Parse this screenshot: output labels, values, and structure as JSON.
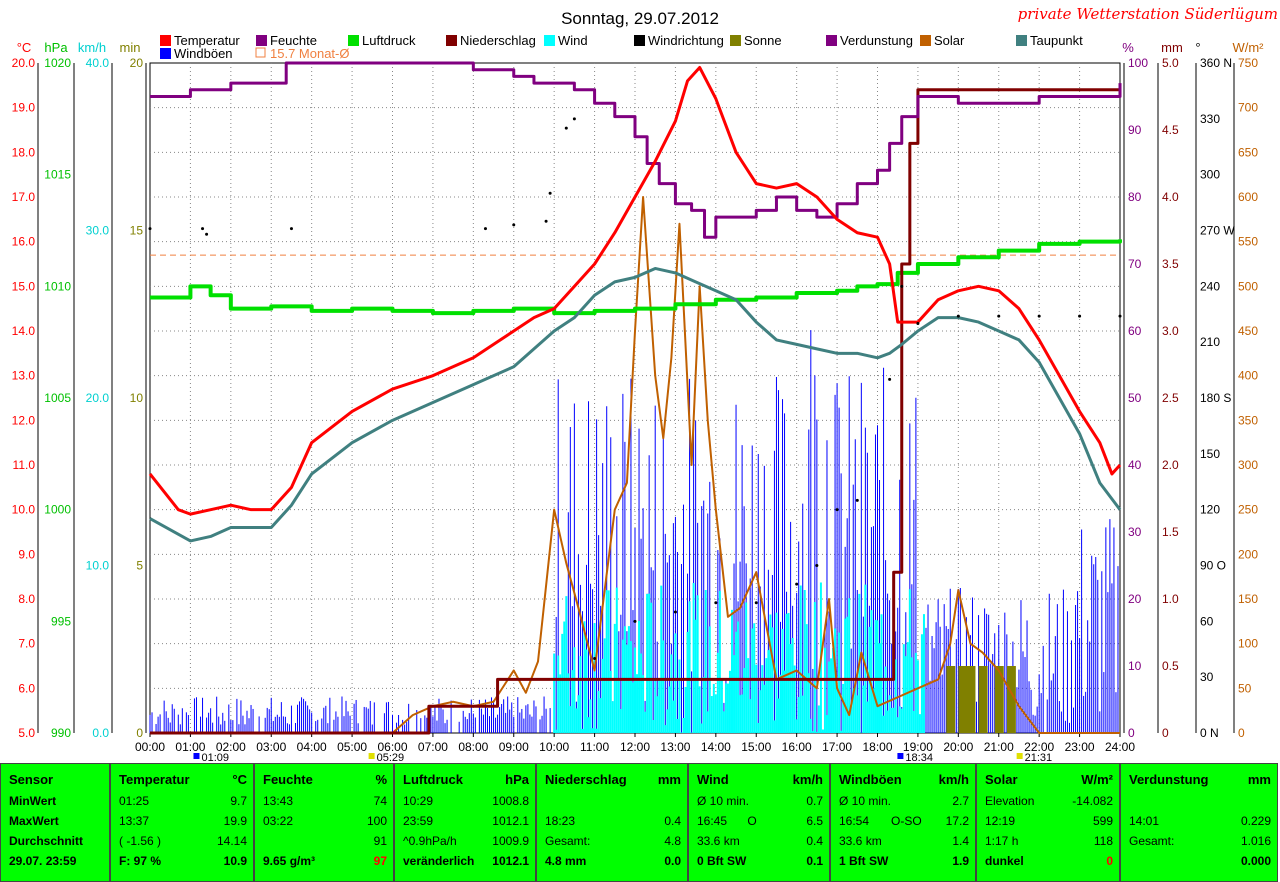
{
  "title": "Sonntag, 29.07.2012",
  "brand": "private Wetterstation Süderlügum",
  "legend": [
    {
      "label": "Temperatur",
      "color": "#ff0000"
    },
    {
      "label": "Feuchte",
      "color": "#800080"
    },
    {
      "label": "Luftdruck",
      "color": "#00e000"
    },
    {
      "label": "Niederschlag",
      "color": "#800000"
    },
    {
      "label": "Wind",
      "color": "#00ffff"
    },
    {
      "label": "Windrichtung",
      "color": "#000000"
    },
    {
      "label": "Sonne",
      "color": "#808000"
    },
    {
      "label": "Verdunstung",
      "color": "#800080"
    },
    {
      "label": "Solar",
      "color": "#c06000"
    },
    {
      "label": "Taupunkt",
      "color": "#408080"
    },
    {
      "label": "Windböen",
      "color": "#0000ff"
    },
    {
      "label": "15.7 Monat-Ø",
      "color": "#f08040"
    }
  ],
  "axes_left": {
    "temp": {
      "unit": "°C",
      "ticks": [
        "20.0",
        "19.0",
        "18.0",
        "17.0",
        "16.0",
        "15.0",
        "14.0",
        "13.0",
        "12.0",
        "11.0",
        "10.0",
        "9.0",
        "8.0",
        "7.0",
        "6.0",
        "5.0"
      ],
      "color": "#ff0000"
    },
    "pressure": {
      "unit": "hPa",
      "ticks": [
        "1020",
        "1015",
        "1010",
        "1005",
        "1000",
        "995",
        "990"
      ],
      "color": "#00c000"
    },
    "wind": {
      "unit": "km/h",
      "ticks": [
        "40.0",
        "30.0",
        "20.0",
        "10.0",
        "0.0"
      ],
      "color": "#00d0d0"
    },
    "sun": {
      "unit": "min",
      "ticks": [
        "20",
        "15",
        "10",
        "5",
        "0"
      ],
      "color": "#808000"
    }
  },
  "axes_right": {
    "humidity": {
      "unit": "%",
      "ticks": [
        "100",
        "90",
        "80",
        "70",
        "60",
        "50",
        "40",
        "30",
        "20",
        "10",
        "0"
      ],
      "color": "#800080"
    },
    "rain": {
      "unit": "mm",
      "ticks": [
        "5.0",
        "4.5",
        "4.0",
        "3.5",
        "3.0",
        "2.5",
        "2.0",
        "1.5",
        "1.0",
        "0.5",
        "0"
      ],
      "color": "#800000"
    },
    "direction": {
      "unit": "°",
      "ticks": [
        "360 N",
        "330",
        "300",
        "270 W",
        "240",
        "210",
        "180 S",
        "150",
        "120",
        "90 O",
        "60",
        "30",
        "0 N"
      ],
      "color": "#000000"
    },
    "solar": {
      "unit": "W/m²",
      "ticks": [
        "750",
        "700",
        "650",
        "600",
        "550",
        "500",
        "450",
        "400",
        "350",
        "300",
        "250",
        "200",
        "150",
        "100",
        "50",
        "0"
      ],
      "color": "#c06000"
    }
  },
  "x_ticks": [
    "00:00",
    "01:00",
    "02:00",
    "03:00",
    "04:00",
    "05:00",
    "06:00",
    "07:00",
    "08:00",
    "09:00",
    "10:00",
    "11:00",
    "12:00",
    "13:00",
    "14:00",
    "15:00",
    "16:00",
    "17:00",
    "18:00",
    "19:00",
    "20:00",
    "21:00",
    "22:00",
    "23:00",
    "24:00"
  ],
  "markers": [
    {
      "label": "01:09",
      "color": "#0000ff"
    },
    {
      "label": "05:29",
      "color": "#e0e000"
    },
    {
      "label": "18:34",
      "color": "#0000ff"
    },
    {
      "label": "21:31",
      "color": "#e0e000"
    }
  ],
  "chart_data": {
    "type": "line",
    "title": "Sonntag, 29.07.2012",
    "x_range": [
      0,
      24
    ],
    "monthly_avg_temp": 15.7,
    "series": [
      {
        "name": "Temperatur",
        "unit": "°C",
        "x": [
          0,
          0.7,
          1,
          1.5,
          2,
          2.5,
          3,
          3.5,
          4,
          5,
          6,
          7,
          8,
          8.5,
          9,
          9.5,
          10,
          10.5,
          11,
          11.5,
          12,
          12.5,
          13,
          13.3,
          13.6,
          14,
          14.5,
          15,
          15.5,
          16,
          16.5,
          17,
          17.5,
          18,
          18.3,
          18.5,
          19,
          19.5,
          20,
          20.5,
          21,
          21.5,
          22,
          22.5,
          23,
          23.5,
          23.8,
          24
        ],
        "y": [
          10.8,
          10.0,
          9.9,
          10.0,
          10.1,
          10.0,
          10.0,
          10.5,
          11.5,
          12.2,
          12.7,
          13.0,
          13.4,
          13.7,
          14.0,
          14.3,
          14.5,
          15.0,
          15.5,
          16.2,
          17.0,
          17.8,
          18.7,
          19.6,
          19.9,
          19.2,
          18.0,
          17.3,
          17.2,
          17.3,
          17.0,
          16.5,
          16.2,
          16.1,
          15.5,
          14.2,
          14.2,
          14.7,
          14.9,
          15.0,
          14.9,
          14.5,
          13.8,
          13.0,
          12.2,
          11.5,
          10.8,
          11.0
        ]
      },
      {
        "name": "Feuchte",
        "unit": "%",
        "x": [
          0,
          1,
          2,
          3,
          3.37,
          4,
          6,
          8,
          9,
          9.5,
          10,
          10.5,
          11,
          11.5,
          12,
          12.3,
          12.6,
          13,
          13.4,
          13.72,
          14,
          14.5,
          15,
          15.5,
          16,
          16.5,
          17,
          17.5,
          18,
          18.3,
          18.6,
          19,
          19.5,
          20,
          21,
          22,
          23,
          24
        ],
        "y": [
          95,
          96,
          97,
          97,
          100,
          100,
          100,
          99,
          98,
          97,
          97,
          96,
          94,
          92,
          89,
          85,
          82,
          79,
          78,
          74,
          77,
          77,
          78,
          80,
          78,
          77,
          79,
          82,
          84,
          88,
          92,
          95,
          95,
          94,
          94,
          95,
          95,
          97
        ]
      },
      {
        "name": "Luftdruck",
        "unit": "hPa",
        "x": [
          0,
          1,
          1.5,
          2,
          3,
          4,
          5,
          6,
          7,
          8,
          9,
          10,
          10.49,
          11,
          12,
          13,
          14,
          15,
          16,
          17,
          17.5,
          18,
          18.5,
          19,
          20,
          21,
          22,
          23,
          24
        ],
        "y": [
          1009.5,
          1010,
          1009.6,
          1009.0,
          1009.1,
          1008.9,
          1009.0,
          1008.9,
          1008.8,
          1008.9,
          1009.0,
          1008.8,
          1008.8,
          1008.9,
          1009.0,
          1009.2,
          1009.4,
          1009.5,
          1009.7,
          1009.8,
          1010.0,
          1010.1,
          1010.6,
          1011.0,
          1011.3,
          1011.6,
          1011.9,
          1012.0,
          1012.1
        ]
      },
      {
        "name": "Niederschlag",
        "unit": "mm",
        "x": [
          0,
          6.8,
          6.9,
          8.5,
          8.6,
          18.3,
          18.4,
          18.6,
          18.8,
          19,
          24
        ],
        "y": [
          0,
          0,
          0.2,
          0.2,
          0.4,
          0.4,
          1.2,
          3.5,
          4.4,
          4.8,
          4.8
        ]
      },
      {
        "name": "Taupunkt",
        "unit": "°C",
        "x": [
          0,
          1,
          1.5,
          2,
          3,
          3.5,
          4,
          5,
          6,
          7,
          8,
          9,
          9.5,
          10,
          10.5,
          11,
          11.5,
          12,
          12.5,
          13,
          13.5,
          14,
          14.5,
          15,
          15.5,
          16,
          16.5,
          17,
          17.5,
          18,
          18.3,
          18.6,
          19,
          19.5,
          20,
          20.5,
          21,
          21.5,
          22,
          22.5,
          23,
          23.5,
          24
        ],
        "y": [
          9.8,
          9.3,
          9.4,
          9.6,
          9.6,
          10.1,
          10.8,
          11.5,
          12.0,
          12.4,
          12.8,
          13.2,
          13.6,
          14.0,
          14.3,
          14.8,
          15.1,
          15.2,
          15.4,
          15.3,
          15.1,
          14.9,
          14.7,
          14.2,
          13.8,
          13.7,
          13.6,
          13.5,
          13.5,
          13.4,
          13.5,
          13.7,
          14.0,
          14.3,
          14.3,
          14.2,
          14.0,
          13.8,
          13.3,
          12.5,
          11.7,
          10.6,
          10.0
        ]
      },
      {
        "name": "Solar",
        "unit": "W/m²",
        "x": [
          0,
          6,
          6.5,
          7,
          7.5,
          8,
          8.5,
          9,
          9.3,
          9.6,
          10,
          10.3,
          10.6,
          11,
          11.5,
          11.8,
          12,
          12.2,
          12.5,
          12.7,
          12.9,
          13.1,
          13.4,
          13.6,
          13.8,
          14,
          14.3,
          14.6,
          15,
          15.5,
          16,
          16.5,
          16.8,
          17,
          17.3,
          17.6,
          18,
          18.5,
          19,
          19.5,
          19.8,
          20,
          20.3,
          20.6,
          21,
          21.5,
          22,
          24
        ],
        "y": [
          0,
          0,
          20,
          30,
          35,
          30,
          35,
          70,
          45,
          80,
          250,
          190,
          140,
          70,
          250,
          280,
          450,
          600,
          400,
          330,
          420,
          570,
          300,
          500,
          350,
          250,
          130,
          140,
          180,
          60,
          70,
          50,
          150,
          50,
          20,
          90,
          30,
          40,
          50,
          60,
          100,
          160,
          100,
          90,
          70,
          30,
          0,
          0
        ]
      },
      {
        "name": "Windrichtung",
        "unit": "°",
        "x": [
          0,
          1.3,
          1.4,
          3.5,
          8.3,
          9,
          9.8,
          9.9,
          10.3,
          10.5,
          11,
          12,
          13,
          14,
          15,
          16,
          16.5,
          17,
          17.5,
          18.3,
          18.6,
          19,
          20,
          21,
          22,
          23,
          24
        ],
        "y": [
          271,
          271,
          268,
          271,
          271,
          273,
          275,
          290,
          325,
          330,
          40,
          60,
          65,
          70,
          70,
          80,
          90,
          120,
          125,
          190,
          240,
          220,
          224,
          224,
          224,
          224,
          224
        ]
      },
      {
        "name": "Sonne",
        "unit": "min",
        "x": [
          19.8,
          20.1,
          20.3,
          20.6,
          21.0,
          21.3
        ],
        "y": [
          1,
          1,
          1,
          1,
          1,
          1
        ]
      }
    ]
  },
  "panels": [
    {
      "header": "Sensor",
      "unit": "",
      "rows": [
        [
          "MinWert",
          "",
          ""
        ],
        [
          "MaxWert",
          "",
          ""
        ],
        [
          "Durchschnitt",
          "",
          ""
        ],
        [
          "29.07. 23:59",
          "",
          ""
        ]
      ]
    },
    {
      "header": "Temperatur",
      "unit": "°C",
      "rows": [
        [
          "01:25",
          "",
          "9.7"
        ],
        [
          "13:37",
          "",
          "19.9"
        ],
        [
          "( -1.56 )",
          "",
          "14.14"
        ],
        [
          "F: 97 %",
          "",
          "10.9"
        ]
      ]
    },
    {
      "header": "Feuchte",
      "unit": "%",
      "rows": [
        [
          "13:43",
          "",
          "74"
        ],
        [
          "03:22",
          "",
          "100"
        ],
        [
          "",
          "",
          "91"
        ],
        [
          "9.65 g/m³",
          "",
          "97"
        ]
      ]
    },
    {
      "header": "Luftdruck",
      "unit": "hPa",
      "rows": [
        [
          "10:29",
          "",
          "1008.8"
        ],
        [
          "23:59",
          "",
          "1012.1"
        ],
        [
          "^0.9hPa/h",
          "",
          "1009.9"
        ],
        [
          "veränderlich",
          "",
          "1012.1"
        ]
      ]
    },
    {
      "header": "Niederschlag",
      "unit": "mm",
      "rows": [
        [
          "",
          "",
          ""
        ],
        [
          "18:23",
          "",
          "0.4"
        ],
        [
          "Gesamt:",
          "",
          "4.8"
        ],
        [
          "4.8 mm",
          "",
          "0.0"
        ]
      ]
    },
    {
      "header": "Wind",
      "unit": "km/h",
      "rows": [
        [
          "Ø 10 min.",
          "",
          "0.7"
        ],
        [
          "16:45",
          "O",
          "6.5"
        ],
        [
          "33.6 km",
          "",
          "0.4"
        ],
        [
          "0 Bft SW",
          "",
          "0.1"
        ]
      ]
    },
    {
      "header": "Windböen",
      "unit": "km/h",
      "rows": [
        [
          "Ø 10 min.",
          "",
          "2.7"
        ],
        [
          "16:54",
          "O-SO",
          "17.2"
        ],
        [
          "33.6 km",
          "",
          "1.4"
        ],
        [
          "1 Bft SW",
          "",
          "1.9"
        ]
      ]
    },
    {
      "header": "Solar",
      "unit": "W/m²",
      "rows": [
        [
          "Elevation",
          "",
          "-14.082"
        ],
        [
          "12:19",
          "",
          "599"
        ],
        [
          "1:17 h",
          "",
          "118"
        ],
        [
          "dunkel",
          "",
          "0"
        ]
      ]
    },
    {
      "header": "Verdunstung",
      "unit": "mm",
      "rows": [
        [
          "",
          "",
          ""
        ],
        [
          "14:01",
          "",
          "0.229"
        ],
        [
          "Gesamt:",
          "",
          "1.016"
        ],
        [
          "",
          "",
          "0.000"
        ]
      ]
    }
  ]
}
